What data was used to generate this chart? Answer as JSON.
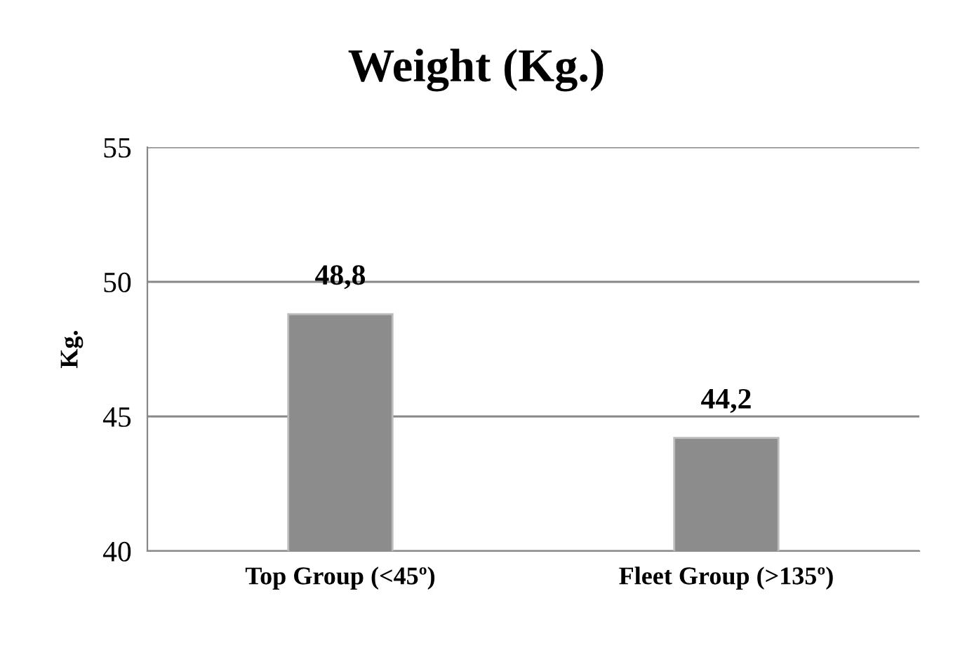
{
  "chart_data": {
    "type": "bar",
    "title": "Weight (Kg.)",
    "ylabel": "Kg.",
    "categories": [
      "Top Group (<45º)",
      "Fleet Group (>135º)"
    ],
    "values": [
      48.8,
      44.2
    ],
    "value_labels": [
      "48,8",
      "44,2"
    ],
    "color": "#8c8c8c",
    "ylim": [
      40,
      55
    ],
    "yticks": [
      40,
      45,
      50,
      55
    ],
    "grid": "y",
    "legend": false
  }
}
